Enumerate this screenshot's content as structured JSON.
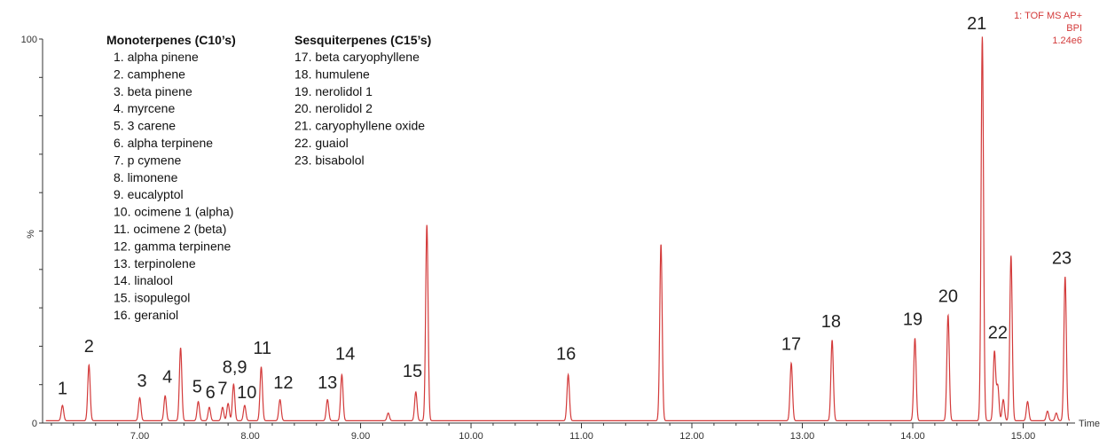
{
  "chart_data": {
    "type": "line",
    "title": "",
    "xlabel": "Time",
    "ylabel": "%",
    "xlim": [
      6.12,
      15.47
    ],
    "ylim": [
      0,
      100
    ],
    "x_ticks": [
      "7.00",
      "8.00",
      "9.00",
      "10.00",
      "11.00",
      "12.00",
      "13.00",
      "14.00",
      "15.00"
    ],
    "y_ticks": [
      "0",
      "100"
    ],
    "line_color": "#d33a3a",
    "info_lines": [
      "1: TOF MS AP+",
      "BPI",
      "1.24e6"
    ],
    "legend": {
      "groups": [
        {
          "title": "Monoterpenes (C10’s)",
          "items": [
            "1. alpha pinene",
            "2. camphene",
            "3. beta pinene",
            "4. myrcene",
            "5. 3 carene",
            "6. alpha terpinene",
            "7. p cymene",
            "8. limonene",
            "9. eucalyptol",
            "10. ocimene 1 (alpha)",
            "11. ocimene 2 (beta)",
            "12. gamma terpinene",
            "13. terpinolene",
            "14. linalool",
            "15. isopulegol",
            "16. geraniol"
          ]
        },
        {
          "title": "Sesquiterpenes (C15’s)",
          "items": [
            "17. beta caryophyllene",
            "18. humulene",
            "19. nerolidol 1",
            "20. nerolidol 2",
            "21. caryophyllene oxide",
            "22. guaiol",
            "23. bisabolol"
          ]
        }
      ]
    },
    "peaks": [
      {
        "rt": 6.3,
        "height": 4.0
      },
      {
        "rt": 6.54,
        "height": 14.5
      },
      {
        "rt": 7.0,
        "height": 6.0
      },
      {
        "rt": 7.23,
        "height": 6.5
      },
      {
        "rt": 7.37,
        "height": 19.0
      },
      {
        "rt": 7.53,
        "height": 5.0
      },
      {
        "rt": 7.63,
        "height": 3.5
      },
      {
        "rt": 7.75,
        "height": 3.5
      },
      {
        "rt": 7.8,
        "height": 4.5
      },
      {
        "rt": 7.85,
        "height": 9.5
      },
      {
        "rt": 7.95,
        "height": 4.0
      },
      {
        "rt": 8.1,
        "height": 14.0
      },
      {
        "rt": 8.27,
        "height": 5.5
      },
      {
        "rt": 8.7,
        "height": 5.5
      },
      {
        "rt": 8.83,
        "height": 12.0
      },
      {
        "rt": 9.25,
        "height": 2.0
      },
      {
        "rt": 9.5,
        "height": 7.5
      },
      {
        "rt": 9.6,
        "height": 51.0
      },
      {
        "rt": 10.88,
        "height": 12.0
      },
      {
        "rt": 11.72,
        "height": 46.0
      },
      {
        "rt": 12.9,
        "height": 15.0
      },
      {
        "rt": 13.27,
        "height": 21.0
      },
      {
        "rt": 14.02,
        "height": 21.5
      },
      {
        "rt": 14.32,
        "height": 27.5
      },
      {
        "rt": 14.63,
        "height": 100.0
      },
      {
        "rt": 14.74,
        "height": 18.0
      },
      {
        "rt": 14.77,
        "height": 9.0
      },
      {
        "rt": 14.82,
        "height": 5.5
      },
      {
        "rt": 14.89,
        "height": 43.0
      },
      {
        "rt": 15.04,
        "height": 5.0
      },
      {
        "rt": 15.22,
        "height": 2.5
      },
      {
        "rt": 15.3,
        "height": 2.0
      },
      {
        "rt": 15.38,
        "height": 37.5
      }
    ],
    "peak_labels": [
      {
        "text": "1",
        "rt": 6.3,
        "height": 7.5
      },
      {
        "text": "2",
        "rt": 6.54,
        "height": 18.5
      },
      {
        "text": "3",
        "rt": 7.02,
        "height": 9.5
      },
      {
        "text": "4",
        "rt": 7.25,
        "height": 10.5
      },
      {
        "text": "5",
        "rt": 7.52,
        "height": 8.0
      },
      {
        "text": "6",
        "rt": 7.64,
        "height": 6.5
      },
      {
        "text": "7",
        "rt": 7.75,
        "height": 7.5
      },
      {
        "text": "8,9",
        "rt": 7.86,
        "height": 13.0
      },
      {
        "text": "10",
        "rt": 7.97,
        "height": 6.5
      },
      {
        "text": "11",
        "rt": 8.11,
        "height": 18.0
      },
      {
        "text": "12",
        "rt": 8.3,
        "height": 9.0
      },
      {
        "text": "13",
        "rt": 8.7,
        "height": 9.0
      },
      {
        "text": "14",
        "rt": 8.86,
        "height": 16.5
      },
      {
        "text": "15",
        "rt": 9.47,
        "height": 12.0
      },
      {
        "text": "16",
        "rt": 10.86,
        "height": 16.5
      },
      {
        "text": "17",
        "rt": 12.9,
        "height": 19.0
      },
      {
        "text": "18",
        "rt": 13.26,
        "height": 25.0
      },
      {
        "text": "19",
        "rt": 14.0,
        "height": 25.5
      },
      {
        "text": "20",
        "rt": 14.32,
        "height": 31.5
      },
      {
        "text": "21",
        "rt": 14.58,
        "height": 102.5
      },
      {
        "text": "22",
        "rt": 14.77,
        "height": 22.0
      },
      {
        "text": "23",
        "rt": 15.35,
        "height": 41.5
      }
    ]
  }
}
